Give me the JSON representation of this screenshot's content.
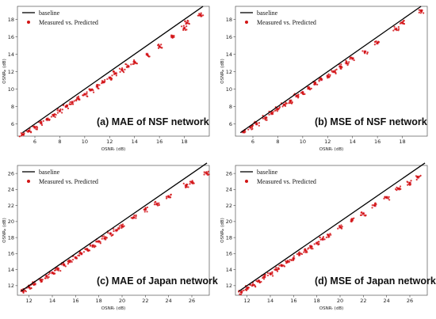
{
  "figure": {
    "legend": {
      "baseline": "baseline",
      "scatter": "Measured vs. Predicted"
    },
    "colors": {
      "baseline": "#000000",
      "scatter": "#d21414",
      "scatter_halo": "#f4a6c8"
    }
  },
  "chart_data": [
    {
      "type": "scatter",
      "id": "a",
      "caption": "(a) MAE of NSF network",
      "xlabel": "OSNRᵣ (dB)",
      "ylabel": "OSNRₚ (dB)",
      "xlim": [
        4.6,
        20
      ],
      "ylim": [
        4.6,
        19.5
      ],
      "xticks": [
        "6",
        "8",
        "10",
        "12",
        "14",
        "16",
        "18"
      ],
      "yticks": [
        "6",
        "8",
        "10",
        "12",
        "14",
        "16",
        "18"
      ],
      "baseline": {
        "x": [
          5.0,
          19.5
        ],
        "y": [
          5.0,
          19.5
        ]
      },
      "series": [
        {
          "name": "Measured vs. Predicted",
          "points": [
            [
              5,
              4.8
            ],
            [
              5.5,
              5.2
            ],
            [
              6,
              5.6
            ],
            [
              6.5,
              6.1
            ],
            [
              7,
              6.5
            ],
            [
              7.5,
              7.0
            ],
            [
              8,
              7.5
            ],
            [
              8.5,
              8.0
            ],
            [
              9,
              8.5
            ],
            [
              9.5,
              8.9
            ],
            [
              10,
              9.4
            ],
            [
              10.5,
              9.9
            ],
            [
              11,
              10.3
            ],
            [
              11.5,
              10.8
            ],
            [
              12,
              11.3
            ],
            [
              12.5,
              11.8
            ],
            [
              13,
              12.2
            ],
            [
              13.5,
              12.6
            ],
            [
              14,
              13.1
            ],
            [
              15,
              14.0
            ],
            [
              16,
              14.9
            ],
            [
              17,
              16.0
            ],
            [
              18,
              17.0
            ],
            [
              18.2,
              17.6
            ],
            [
              19.3,
              18.5
            ]
          ]
        }
      ]
    },
    {
      "type": "scatter",
      "id": "b",
      "caption": "(b) MSE of NSF network",
      "xlabel": "OSNRᵣ (dB)",
      "ylabel": "OSNRₚ (dB)",
      "xlim": [
        4.6,
        20
      ],
      "ylim": [
        4.6,
        19.5
      ],
      "xticks": [
        "6",
        "8",
        "10",
        "12",
        "14",
        "16",
        "18"
      ],
      "yticks": [
        "6",
        "8",
        "10",
        "12",
        "14",
        "16",
        "18"
      ],
      "baseline": {
        "x": [
          5.0,
          19.5
        ],
        "y": [
          5.0,
          19.5
        ]
      },
      "series": [
        {
          "name": "Measured vs. Predicted",
          "points": [
            [
              5.2,
              5.1
            ],
            [
              5.8,
              5.6
            ],
            [
              6.3,
              6.0
            ],
            [
              7,
              6.7
            ],
            [
              7.5,
              7.2
            ],
            [
              8,
              7.7
            ],
            [
              8.5,
              8.2
            ],
            [
              9,
              8.6
            ],
            [
              9.5,
              9.2
            ],
            [
              10,
              9.6
            ],
            [
              10.5,
              10.1
            ],
            [
              11,
              10.6
            ],
            [
              11.5,
              11.1
            ],
            [
              12,
              11.5
            ],
            [
              12.5,
              12.0
            ],
            [
              13,
              12.6
            ],
            [
              13.5,
              13.0
            ],
            [
              14,
              13.5
            ],
            [
              15,
              14.3
            ],
            [
              16,
              15.3
            ],
            [
              17.5,
              16.9
            ],
            [
              18,
              17.6
            ],
            [
              19.5,
              19.0
            ]
          ]
        }
      ]
    },
    {
      "type": "scatter",
      "id": "c",
      "caption": "(c) MAE of Japan network",
      "xlabel": "OSNRᵣ (dB)",
      "ylabel": "OSNRₚ (dB)",
      "xlim": [
        11,
        27.5
      ],
      "ylim": [
        10.8,
        27
      ],
      "xticks": [
        "12",
        "14",
        "16",
        "18",
        "20",
        "22",
        "24",
        "26"
      ],
      "yticks": [
        "12",
        "14",
        "16",
        "18",
        "20",
        "22",
        "24",
        "26"
      ],
      "baseline": {
        "x": [
          11.3,
          27.3
        ],
        "y": [
          11.3,
          27.3
        ]
      },
      "series": [
        {
          "name": "Measured vs. Predicted",
          "points": [
            [
              11.5,
              11.3
            ],
            [
              12,
              11.8
            ],
            [
              12.5,
              12.2
            ],
            [
              13,
              12.7
            ],
            [
              13.5,
              13.2
            ],
            [
              14,
              13.6
            ],
            [
              14.5,
              14.1
            ],
            [
              15,
              14.6
            ],
            [
              15.5,
              15.0
            ],
            [
              16,
              15.5
            ],
            [
              16.5,
              16.0
            ],
            [
              17,
              16.5
            ],
            [
              17.5,
              17.0
            ],
            [
              18,
              17.5
            ],
            [
              18.5,
              17.9
            ],
            [
              19,
              18.5
            ],
            [
              19.5,
              18.9
            ],
            [
              20,
              19.4
            ],
            [
              21,
              20.5
            ],
            [
              22,
              21.5
            ],
            [
              23,
              22.2
            ],
            [
              24,
              23.1
            ],
            [
              25.5,
              24.5
            ],
            [
              26,
              24.9
            ],
            [
              27.3,
              26.0
            ]
          ]
        }
      ]
    },
    {
      "type": "scatter",
      "id": "d",
      "caption": "(d) MSE of Japan network",
      "xlabel": "OSNRᵣ (dB)",
      "ylabel": "OSNRₚ (dB)",
      "xlim": [
        11,
        27.5
      ],
      "ylim": [
        10.8,
        27
      ],
      "xticks": [
        "12",
        "14",
        "16",
        "18",
        "20",
        "22",
        "24",
        "26"
      ],
      "yticks": [
        "12",
        "14",
        "16",
        "18",
        "20",
        "22",
        "24",
        "26"
      ],
      "baseline": {
        "x": [
          11.3,
          27.3
        ],
        "y": [
          11.3,
          27.3
        ]
      },
      "series": [
        {
          "name": "Measured vs. Predicted",
          "points": [
            [
              11.5,
              11.2
            ],
            [
              12,
              11.7
            ],
            [
              12.5,
              12.1
            ],
            [
              13,
              12.6
            ],
            [
              13.5,
              13.1
            ],
            [
              14,
              13.5
            ],
            [
              14.5,
              14.0
            ],
            [
              15,
              14.5
            ],
            [
              15.5,
              15.0
            ],
            [
              16,
              15.4
            ],
            [
              16.5,
              15.9
            ],
            [
              17,
              16.4
            ],
            [
              17.5,
              16.9
            ],
            [
              18,
              17.3
            ],
            [
              18.5,
              17.8
            ],
            [
              19,
              18.3
            ],
            [
              20,
              19.3
            ],
            [
              21,
              20.2
            ],
            [
              22,
              21.0
            ],
            [
              23,
              22.0
            ],
            [
              24,
              23.0
            ],
            [
              25,
              24.1
            ],
            [
              26,
              24.8
            ],
            [
              26.7,
              25.5
            ]
          ]
        }
      ]
    }
  ]
}
